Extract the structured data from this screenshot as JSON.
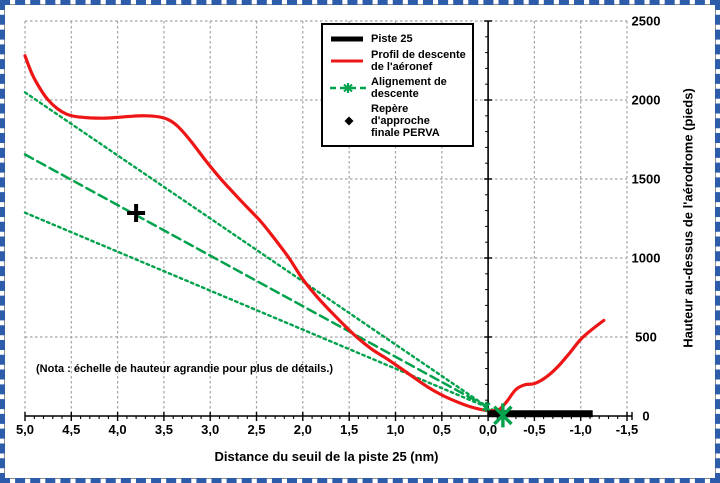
{
  "figure": {
    "frame_color": "#2d5cab",
    "note": "(Nota : échelle de hauteur agrandie pour plus de détails.)"
  },
  "legend": {
    "items": [
      {
        "id": "piste-25",
        "label": "Piste 25",
        "label_lines": [
          "Piste 25"
        ],
        "swatch": "thick-line",
        "color": "#000000"
      },
      {
        "id": "profil-descente",
        "label": "Profil de descente de l'aéronef",
        "label_lines": [
          "Profil de descente",
          "de l'aéronef"
        ],
        "swatch": "line",
        "color": "#ed1515"
      },
      {
        "id": "alignement-descente",
        "label": "Alignement de descente",
        "label_lines": [
          "Alignement de",
          "descente"
        ],
        "swatch": "dashed-marker",
        "color": "#00a24c"
      },
      {
        "id": "repere-perva",
        "label": "Repère d'approche finale PERVA",
        "label_lines": [
          "Repère d'approche",
          "finale PERVA"
        ],
        "swatch": "diamond",
        "color": "#000000"
      }
    ]
  },
  "chart_data": {
    "type": "line",
    "title": "",
    "xlabel": "Distance du seuil de la piste 25 (nm)",
    "ylabel": "Hauteur au-dessus de l'aérodrome (pieds)",
    "note": "(Nota : échelle de hauteur agrandie pour plus de détails.)",
    "grid": true,
    "x_axis": {
      "min": 5.0,
      "max": -1.5,
      "reversed": true,
      "tick_step": 0.5,
      "minor_tick_step": 0.1,
      "tick_labels": [
        "5,0",
        "4,5",
        "4,0",
        "3,5",
        "3,0",
        "2,5",
        "2,0",
        "1,5",
        "1,0",
        "0,5",
        "0,0",
        "-0,5",
        "-1,0",
        "-1,5"
      ]
    },
    "y_axis": {
      "min": 0,
      "max": 2500,
      "tick_step": 500,
      "minor_tick_step": 100,
      "tick_labels": [
        "0",
        "500",
        "1000",
        "1500",
        "2000",
        "2500"
      ]
    },
    "colors": {
      "grid": "#a3a3a3",
      "axis": "#000000",
      "profile": "#ed1515",
      "alignment": "#00a24c",
      "runway": "#000000"
    },
    "series": [
      {
        "id": "alignement-tolerance-sup",
        "name": "",
        "role": "alignment-upper-bound",
        "style": "dotted",
        "color": "#00a24c",
        "width": 2.4,
        "dash": "2.5 3.5",
        "smooth": false,
        "points": [
          [
            5.0,
            2048
          ],
          [
            0.02,
            62
          ]
        ]
      },
      {
        "id": "alignement-tolerance-inf",
        "name": "",
        "role": "alignment-lower-bound",
        "style": "dotted",
        "color": "#00a24c",
        "width": 2.4,
        "dash": "2.5 3.5",
        "smooth": false,
        "points": [
          [
            5.0,
            1287
          ],
          [
            0.02,
            58
          ]
        ]
      },
      {
        "id": "alignement-descente",
        "name": "Alignement de descente",
        "style": "dashed",
        "color": "#00a24c",
        "width": 2.5,
        "dash": "9 5",
        "smooth": false,
        "points": [
          [
            5.0,
            1655
          ],
          [
            -0.16,
            4
          ]
        ]
      },
      {
        "id": "profil-descente",
        "name": "Profil de descente de l'aéronef",
        "style": "solid",
        "color": "#ed1515",
        "width": 3.2,
        "smooth": true,
        "points": [
          [
            5.0,
            2280
          ],
          [
            4.92,
            2160
          ],
          [
            4.84,
            2075
          ],
          [
            4.75,
            2000
          ],
          [
            4.65,
            1945
          ],
          [
            4.55,
            1910
          ],
          [
            4.45,
            1895
          ],
          [
            4.3,
            1887
          ],
          [
            4.15,
            1885
          ],
          [
            4.0,
            1890
          ],
          [
            3.85,
            1897
          ],
          [
            3.7,
            1900
          ],
          [
            3.55,
            1893
          ],
          [
            3.45,
            1875
          ],
          [
            3.35,
            1833
          ],
          [
            3.2,
            1733
          ],
          [
            3.05,
            1617
          ],
          [
            2.9,
            1510
          ],
          [
            2.75,
            1413
          ],
          [
            2.6,
            1320
          ],
          [
            2.45,
            1228
          ],
          [
            2.3,
            1118
          ],
          [
            2.15,
            1000
          ],
          [
            2.0,
            865
          ],
          [
            1.85,
            757
          ],
          [
            1.7,
            662
          ],
          [
            1.55,
            573
          ],
          [
            1.4,
            490
          ],
          [
            1.25,
            420
          ],
          [
            1.1,
            365
          ],
          [
            0.95,
            305
          ],
          [
            0.8,
            243
          ],
          [
            0.65,
            183
          ],
          [
            0.5,
            133
          ],
          [
            0.35,
            93
          ],
          [
            0.2,
            60
          ],
          [
            0.08,
            42
          ],
          [
            -0.03,
            33
          ],
          [
            -0.12,
            42
          ],
          [
            -0.2,
            90
          ],
          [
            -0.3,
            168
          ],
          [
            -0.4,
            198
          ],
          [
            -0.5,
            205
          ],
          [
            -0.62,
            243
          ],
          [
            -0.75,
            310
          ],
          [
            -0.88,
            398
          ],
          [
            -1.0,
            485
          ],
          [
            -1.12,
            547
          ],
          [
            -1.25,
            605
          ]
        ]
      },
      {
        "id": "piste-25",
        "name": "Piste 25",
        "style": "solid",
        "color": "#000000",
        "width": 7,
        "smooth": false,
        "points": [
          [
            0.0,
            14
          ],
          [
            -1.13,
            14
          ]
        ]
      }
    ],
    "markers": [
      {
        "id": "repere-perva",
        "name": "Repère d'approche finale PERVA",
        "shape": "plus",
        "color": "#000000",
        "x": 3.8,
        "y": 1285,
        "size": 9,
        "stroke": 4
      },
      {
        "id": "alignement-point-seuil",
        "name": "Alignement de descente (point)",
        "shape": "asterisk",
        "color": "#00a24c",
        "x": 0.02,
        "y": 58,
        "size": 5,
        "stroke": 2.2
      },
      {
        "id": "alignement-point-toucher",
        "name": "Alignement de descente (point)",
        "shape": "asterisk",
        "color": "#00a24c",
        "x": -0.16,
        "y": 4,
        "size": 12,
        "stroke": 3.4
      }
    ]
  }
}
